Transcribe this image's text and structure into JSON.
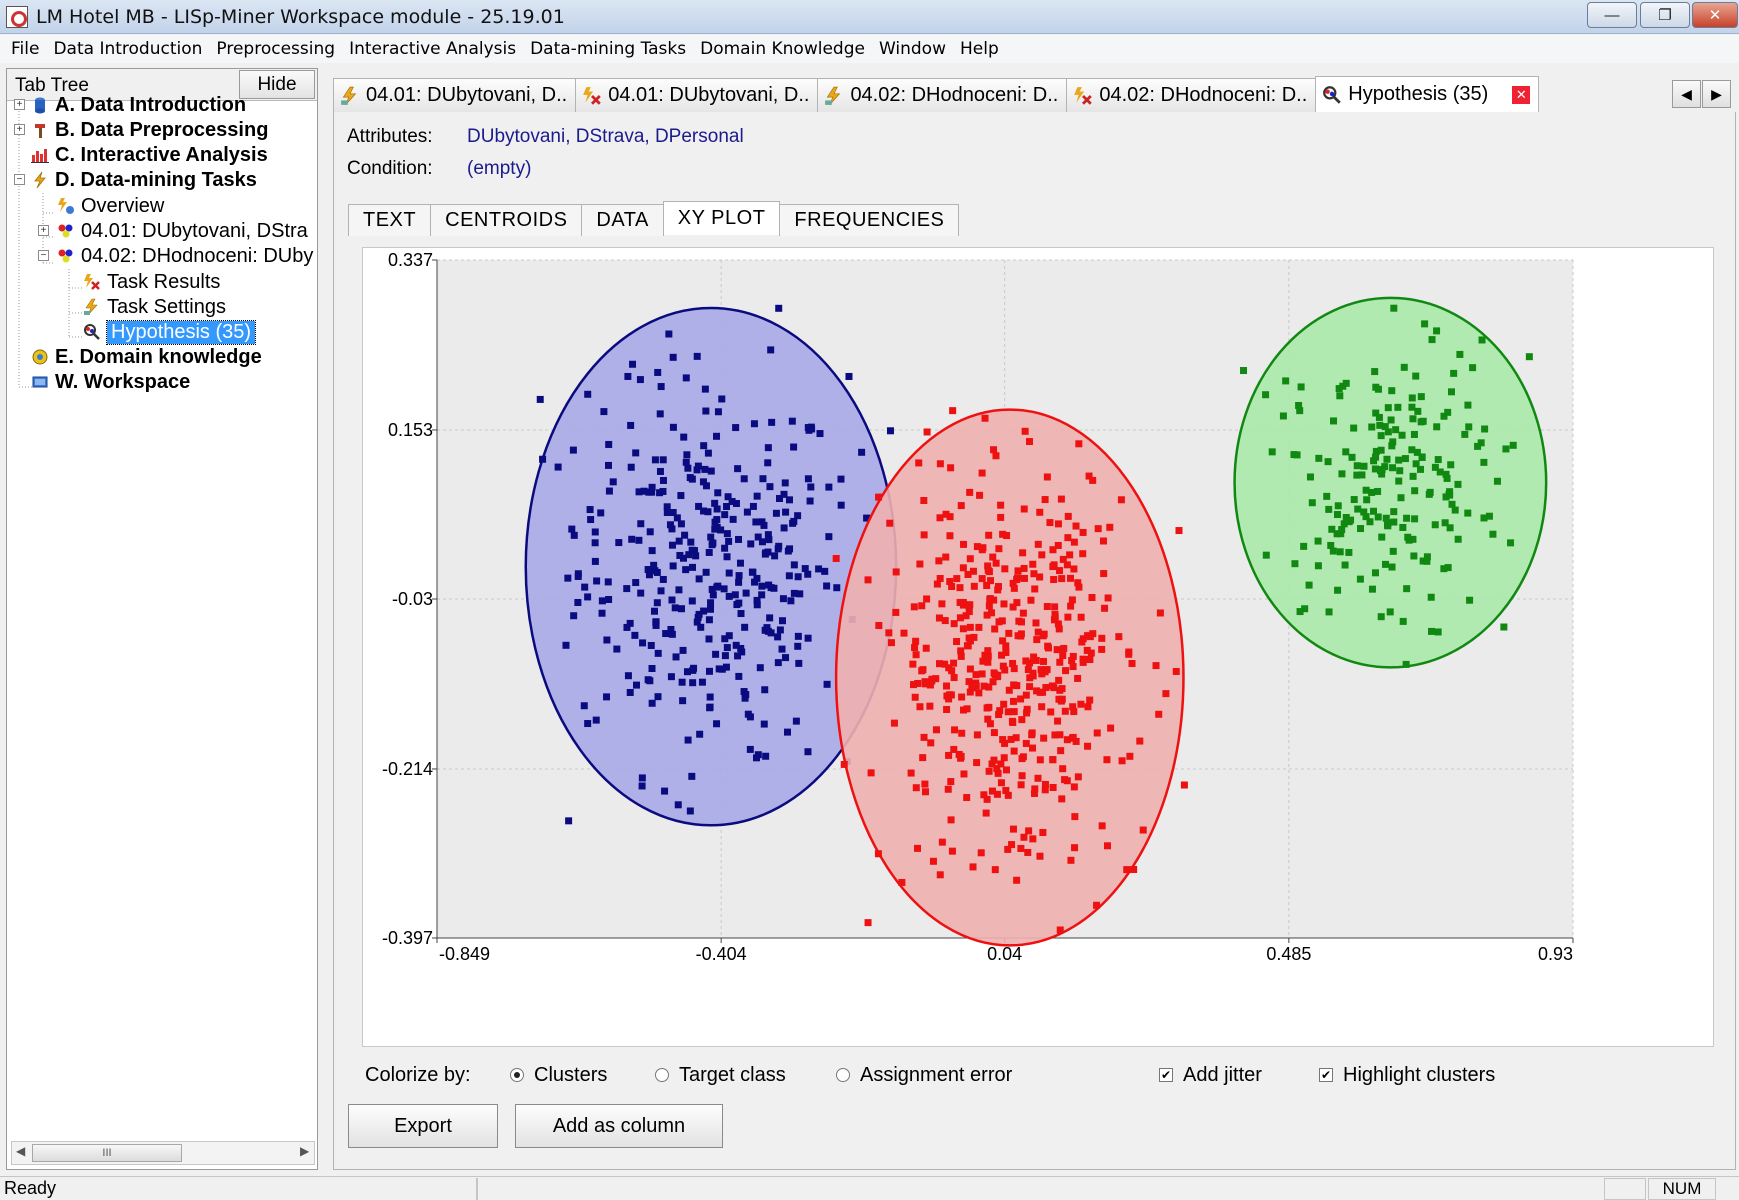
{
  "window": {
    "title": "LM Hotel MB - LISp-Miner Workspace module - 25.19.01",
    "min_glyph": "—",
    "max_glyph": "❐",
    "close_glyph": "✕"
  },
  "menu": [
    "File",
    "Data Introduction",
    "Preprocessing",
    "Interactive Analysis",
    "Data-mining Tasks",
    "Domain Knowledge",
    "Window",
    "Help"
  ],
  "left_panel": {
    "title": "Tab Tree",
    "hide_label": "Hide",
    "nodes": [
      {
        "label": "A. Data Introduction",
        "icon": "database-icon"
      },
      {
        "label": "B. Data Preprocessing",
        "icon": "hammer-icon"
      },
      {
        "label": "C. Interactive Analysis",
        "icon": "bar-chart-icon"
      },
      {
        "label": "D. Data-mining Tasks",
        "icon": "lightning-icon"
      },
      {
        "label": "Overview",
        "icon": "overview-icon"
      },
      {
        "label": "04.01: DUbytovani, DStra",
        "icon": "task-icon"
      },
      {
        "label": "04.02: DHodnoceni: DUby",
        "icon": "task-icon"
      },
      {
        "label": "Task Results",
        "icon": "task-results-icon"
      },
      {
        "label": "Task Settings",
        "icon": "task-settings-icon"
      },
      {
        "label": "Hypothesis (35)",
        "icon": "hypothesis-icon"
      },
      {
        "label": "E. Domain knowledge",
        "icon": "domain-knowledge-icon"
      },
      {
        "label": "W. Workspace",
        "icon": "workspace-icon"
      }
    ],
    "scroll_thumb_glyph": "III"
  },
  "doc_tabs": [
    {
      "label": "04.01: DUbytovani, D..",
      "icon": "task-settings-icon"
    },
    {
      "label": "04.01: DUbytovani, D..",
      "icon": "task-results-icon"
    },
    {
      "label": "04.02: DHodnoceni: D..",
      "icon": "task-settings-icon"
    },
    {
      "label": "04.02: DHodnoceni: D..",
      "icon": "task-results-icon"
    },
    {
      "label": "Hypothesis (35)",
      "icon": "hypothesis-icon"
    }
  ],
  "hypothesis": {
    "attributes_label": "Attributes:",
    "attributes_value": "DUbytovani, DStrava, DPersonal",
    "condition_label": "Condition:",
    "condition_value": "(empty)"
  },
  "subtabs": [
    "TEXT",
    "CENTROIDS",
    "DATA",
    "XY PLOT",
    "FREQUENCIES"
  ],
  "active_subtab": "XY PLOT",
  "chart_data": {
    "type": "scatter",
    "title": "",
    "xlabel": "",
    "ylabel": "",
    "xlim": [
      -0.849,
      0.93
    ],
    "ylim": [
      -0.397,
      0.337
    ],
    "x_ticks": [
      "-0.849",
      "-0.404",
      "0.04",
      "0.485",
      "0.93"
    ],
    "y_ticks": [
      "0.337",
      "0.153",
      "-0.03",
      "-0.214",
      "-0.397"
    ],
    "grid": true,
    "legend": "none",
    "clusters": [
      {
        "color": "#0b0b80",
        "fill": "#aaaae8",
        "center": [
          -0.42,
          0.005
        ],
        "radius": [
          0.29,
          0.28
        ],
        "count": 350
      },
      {
        "color": "#ee1111",
        "fill": "#f0b0b0",
        "center": [
          0.048,
          -0.115
        ],
        "radius": [
          0.272,
          0.29
        ],
        "count": 450
      },
      {
        "color": "#118811",
        "fill": "#aaeaaa",
        "center": [
          0.644,
          0.096
        ],
        "radius": [
          0.244,
          0.2
        ],
        "count": 200
      }
    ]
  },
  "controls": {
    "colorize_label": "Colorize by:",
    "radio_clusters": "Clusters",
    "radio_target": "Target class",
    "radio_error": "Assignment error",
    "check_jitter": "Add jitter",
    "check_highlight": "Highlight clusters",
    "check_glyph": "✔"
  },
  "buttons": {
    "export": "Export",
    "add_column": "Add as column"
  },
  "status": {
    "text": "Ready",
    "num": "NUM"
  }
}
